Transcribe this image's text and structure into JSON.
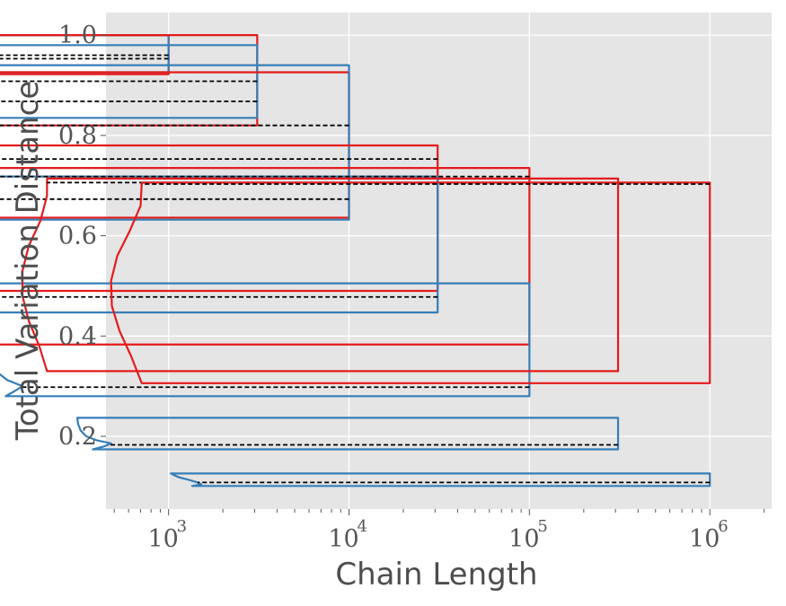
{
  "chart_data": {
    "type": "violin",
    "xlabel": "Chain Length",
    "ylabel": "Total Variation Distance",
    "xscale": "log",
    "xlim": [
      450,
      2200000
    ],
    "ylim": [
      0.055,
      1.045
    ],
    "xticks": [
      {
        "base": "10",
        "exp": "3",
        "value": 1000
      },
      {
        "base": "10",
        "exp": "4",
        "value": 10000
      },
      {
        "base": "10",
        "exp": "5",
        "value": 100000
      },
      {
        "base": "10",
        "exp": "6",
        "value": 1000000
      }
    ],
    "yticks": [
      "0.2",
      "0.4",
      "0.6",
      "0.8",
      "1.0"
    ],
    "grid": true,
    "colors": {
      "left": "#e41a1c",
      "right": "#377eb8",
      "median": "#000000",
      "background": "#e5e5e5",
      "grid": "#ffffff"
    },
    "violins": [
      {
        "x": 1000,
        "left": {
          "min": 0.922,
          "max": 1.0,
          "median": 0.96,
          "profile": [
            [
              0.922,
              0.92
            ],
            [
              0.93,
              0.93
            ],
            [
              0.945,
              0.95
            ],
            [
              0.96,
              0.88
            ],
            [
              0.975,
              0.95
            ],
            [
              0.99,
              0.94
            ],
            [
              1.0,
              0.92
            ]
          ]
        },
        "right": {
          "min": 0.926,
          "max": 1.0,
          "median": 0.953,
          "profile": [
            [
              0.926,
              1.3
            ],
            [
              0.935,
              1.42
            ],
            [
              0.944,
              1.55
            ],
            [
              0.952,
              1.47
            ],
            [
              0.96,
              1.43
            ],
            [
              0.972,
              1.32
            ],
            [
              0.985,
              1.16
            ],
            [
              1.0,
              1.0
            ]
          ]
        }
      },
      {
        "x": 3100,
        "left": {
          "min": 0.82,
          "max": 1.0,
          "median": 0.908,
          "profile": [
            [
              0.82,
              2.15
            ],
            [
              0.835,
              2.05
            ],
            [
              0.855,
              2.0
            ],
            [
              0.875,
              2.15
            ],
            [
              0.9,
              2.25
            ],
            [
              0.925,
              2.0
            ],
            [
              0.95,
              2.05
            ],
            [
              0.975,
              2.45
            ],
            [
              1.0,
              2.85
            ]
          ]
        },
        "right": {
          "min": 0.835,
          "max": 0.98,
          "median": 0.868,
          "profile": [
            [
              0.835,
              4.0
            ],
            [
              0.848,
              4.75
            ],
            [
              0.862,
              4.7
            ],
            [
              0.875,
              4.35
            ],
            [
              0.895,
              3.8
            ],
            [
              0.92,
              3.5
            ],
            [
              0.945,
              3.25
            ],
            [
              0.965,
              3.2
            ],
            [
              0.98,
              3.1
            ]
          ]
        }
      },
      {
        "x": 10000,
        "left": {
          "min": 0.636,
          "max": 0.926,
          "median": 0.82,
          "profile": [
            [
              0.636,
              7.9
            ],
            [
              0.66,
              7.0
            ],
            [
              0.7,
              6.7
            ],
            [
              0.735,
              7.5
            ],
            [
              0.77,
              6.95
            ],
            [
              0.8,
              6.6
            ],
            [
              0.83,
              6.75
            ],
            [
              0.87,
              7.55
            ],
            [
              0.9,
              8.6
            ],
            [
              0.926,
              9.6
            ]
          ]
        },
        "right": {
          "min": 0.632,
          "max": 0.94,
          "median": 0.673,
          "profile": [
            [
              0.632,
              13.8
            ],
            [
              0.645,
              15.7
            ],
            [
              0.66,
              15.4
            ],
            [
              0.68,
              14.2
            ],
            [
              0.71,
              12.5
            ],
            [
              0.75,
              11.6
            ],
            [
              0.79,
              11.0
            ],
            [
              0.84,
              10.6
            ],
            [
              0.9,
              10.2
            ],
            [
              0.94,
              10.0
            ]
          ]
        }
      },
      {
        "x": 31000,
        "left": {
          "min": 0.49,
          "max": 0.78,
          "median": 0.753,
          "profile": [
            [
              0.49,
              21.0
            ],
            [
              0.52,
              19.5
            ],
            [
              0.56,
              19.2
            ],
            [
              0.6,
              20.8
            ],
            [
              0.64,
              22.9
            ],
            [
              0.68,
              23.0
            ],
            [
              0.72,
              21.0
            ],
            [
              0.755,
              20.0
            ],
            [
              0.78,
              20.0
            ]
          ]
        },
        "right": {
          "min": 0.447,
          "max": 0.718,
          "median": 0.478,
          "profile": [
            [
              0.447,
              42.0
            ],
            [
              0.462,
              46.0
            ],
            [
              0.48,
              44.5
            ],
            [
              0.5,
              37.5
            ],
            [
              0.53,
              33.5
            ],
            [
              0.57,
              32.0
            ],
            [
              0.62,
              31.3
            ],
            [
              0.67,
              31.1
            ],
            [
              0.718,
              31.0
            ]
          ]
        }
      },
      {
        "x": 100000,
        "left": {
          "min": 0.383,
          "max": 0.735,
          "median": 0.718,
          "profile": [
            [
              0.383,
              67.0
            ],
            [
              0.42,
              63.0
            ],
            [
              0.47,
              58.0
            ],
            [
              0.52,
              57.0
            ],
            [
              0.57,
              61.5
            ],
            [
              0.62,
              70.0
            ],
            [
              0.67,
              70.0
            ],
            [
              0.71,
              66.0
            ],
            [
              0.735,
              66.0
            ]
          ]
        },
        "right": {
          "min": 0.28,
          "max": 0.505,
          "median": 0.298,
          "profile": [
            [
              0.28,
              125.0
            ],
            [
              0.29,
              140.0
            ],
            [
              0.3,
              155.0
            ],
            [
              0.312,
              128.0
            ],
            [
              0.328,
              112.0
            ],
            [
              0.35,
              106.0
            ],
            [
              0.38,
              103.0
            ],
            [
              0.42,
              101.5
            ],
            [
              0.46,
              101.0
            ],
            [
              0.505,
              101.0
            ]
          ]
        }
      },
      {
        "x": 310000,
        "left": {
          "min": 0.33,
          "max": 0.714,
          "median": 0.706,
          "profile": [
            [
              0.33,
              212.0
            ],
            [
              0.38,
              192.0
            ],
            [
              0.43,
              168.0
            ],
            [
              0.48,
              155.0
            ],
            [
              0.53,
              155.0
            ],
            [
              0.58,
              168.0
            ],
            [
              0.63,
              195.0
            ],
            [
              0.68,
              212.0
            ],
            [
              0.714,
              212.0
            ]
          ]
        },
        "right": {
          "min": 0.174,
          "max": 0.237,
          "median": 0.183,
          "profile": [
            [
              0.174,
              380.0
            ],
            [
              0.18,
              440.0
            ],
            [
              0.186,
              480.0
            ],
            [
              0.192,
              400.0
            ],
            [
              0.2,
              350.0
            ],
            [
              0.212,
              325.0
            ],
            [
              0.225,
              315.0
            ],
            [
              0.237,
              312.0
            ]
          ]
        }
      },
      {
        "x": 1000000,
        "left": {
          "min": 0.306,
          "max": 0.706,
          "median": 0.703,
          "profile": [
            [
              0.306,
              710.0
            ],
            [
              0.36,
              620.0
            ],
            [
              0.41,
              535.0
            ],
            [
              0.46,
              485.0
            ],
            [
              0.51,
              480.0
            ],
            [
              0.56,
              520.0
            ],
            [
              0.61,
              610.0
            ],
            [
              0.66,
              700.0
            ],
            [
              0.706,
              710.0
            ]
          ]
        },
        "right": {
          "min": 0.101,
          "max": 0.126,
          "median": 0.108,
          "profile": [
            [
              0.101,
              1350.0
            ],
            [
              0.104,
              1520.0
            ],
            [
              0.108,
              1450.0
            ],
            [
              0.113,
              1300.0
            ],
            [
              0.118,
              1150.0
            ],
            [
              0.122,
              1080.0
            ],
            [
              0.126,
              1030.0
            ]
          ]
        }
      }
    ]
  }
}
